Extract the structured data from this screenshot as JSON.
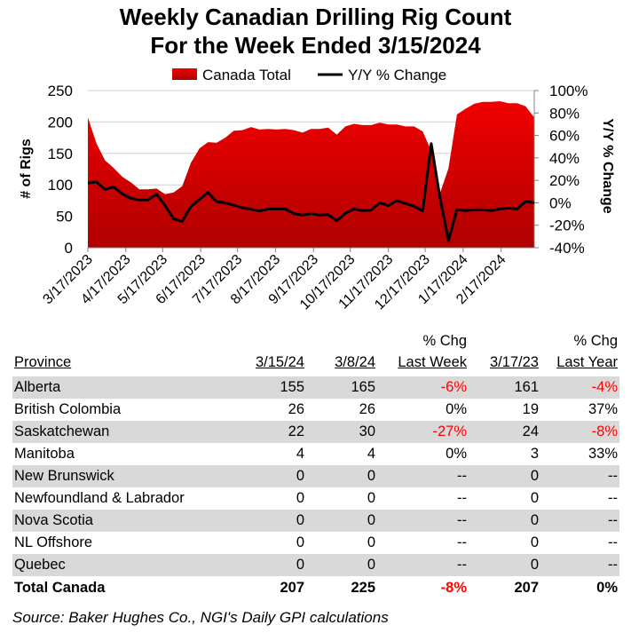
{
  "chart_data": {
    "type": "area+line",
    "title": "Weekly Canadian Drilling Rig Count",
    "subtitle": "For the Week Ended 3/15/2024",
    "ylabel": "# of Rigs",
    "y2label": "Y/Y % Change",
    "ylim": [
      0,
      250
    ],
    "y2lim": [
      -40,
      100
    ],
    "yticks": [
      "0",
      "50",
      "100",
      "150",
      "200",
      "250"
    ],
    "y2ticks": [
      "-40%",
      "-20%",
      "0%",
      "20%",
      "40%",
      "60%",
      "80%",
      "100%"
    ],
    "xticks": [
      "3/17/2023",
      "4/17/2023",
      "5/17/2023",
      "6/17/2023",
      "7/17/2023",
      "8/17/2023",
      "9/17/2023",
      "10/17/2023",
      "11/17/2023",
      "12/17/2023",
      "1/17/2024",
      "2/17/2024"
    ],
    "x_start": "2023-03-17",
    "x_end": "2024-03-15",
    "grid": true,
    "legend_position": "top",
    "colors": {
      "area_top": "#f00000",
      "area_bottom": "#b00000",
      "line": "#000000"
    },
    "series": [
      {
        "name": "Canada Total",
        "type": "area",
        "values": [
          207,
          166,
          139,
          127,
          113,
          104,
          93,
          93,
          94,
          85,
          88,
          98,
          135,
          158,
          168,
          167,
          175,
          186,
          187,
          192,
          188,
          189,
          188,
          189,
          187,
          183,
          189,
          189,
          191,
          180,
          193,
          197,
          195,
          195,
          199,
          196,
          196,
          193,
          193,
          185,
          154,
          86,
          126,
          212,
          221,
          229,
          232,
          232,
          233,
          230,
          230,
          225,
          207
        ]
      },
      {
        "name": "Y/Y % Change",
        "type": "line",
        "axis": "right",
        "values": [
          17.7,
          18.5,
          12,
          14,
          8,
          4,
          2.5,
          2.5,
          7.5,
          -2.5,
          -14.4,
          -16.5,
          -3.3,
          3,
          9.3,
          0.9,
          0,
          -2,
          -4.4,
          -5.7,
          -7.3,
          -5.5,
          -5.5,
          -5.5,
          -9.7,
          -11,
          -9.7,
          -11,
          -10.5,
          -16,
          -9.4,
          -5.5,
          -7,
          -6.5,
          0,
          -2.5,
          2,
          -0.7,
          -3,
          -7.3,
          52.8,
          5.3,
          -33.7,
          -6,
          -7,
          -6.3,
          -6.3,
          -7,
          -5.5,
          -4.7,
          -5.5,
          1.2,
          0
        ]
      }
    ]
  },
  "table": {
    "headers_top": [
      "",
      "",
      "",
      "% Chg",
      "",
      "% Chg"
    ],
    "headers": [
      "Province",
      "3/15/24",
      "3/8/24",
      "Last Week",
      "3/17/23",
      "Last Year"
    ],
    "rows": [
      [
        "Alberta",
        "155",
        "165",
        "-6%",
        "161",
        "-4%"
      ],
      [
        "British Colombia",
        "26",
        "26",
        "0%",
        "19",
        "37%"
      ],
      [
        "Saskatchewan",
        "22",
        "30",
        "-27%",
        "24",
        "-8%"
      ],
      [
        "Manitoba",
        "4",
        "4",
        "0%",
        "3",
        "33%"
      ],
      [
        "New Brunswick",
        "0",
        "0",
        "--",
        "0",
        "--"
      ],
      [
        "Newfoundland & Labrador",
        "0",
        "0",
        "--",
        "0",
        "--"
      ],
      [
        "Nova Scotia",
        "0",
        "0",
        "--",
        "0",
        "--"
      ],
      [
        "NL Offshore",
        "0",
        "0",
        "--",
        "0",
        "--"
      ],
      [
        "Quebec",
        "0",
        "0",
        "--",
        "0",
        "--"
      ]
    ],
    "total": [
      "Total Canada",
      "207",
      "225",
      "-8%",
      "207",
      "0%"
    ],
    "negative_color": "#ff0000"
  },
  "source": "Source: Baker Hughes Co., NGI's Daily GPI calculations"
}
